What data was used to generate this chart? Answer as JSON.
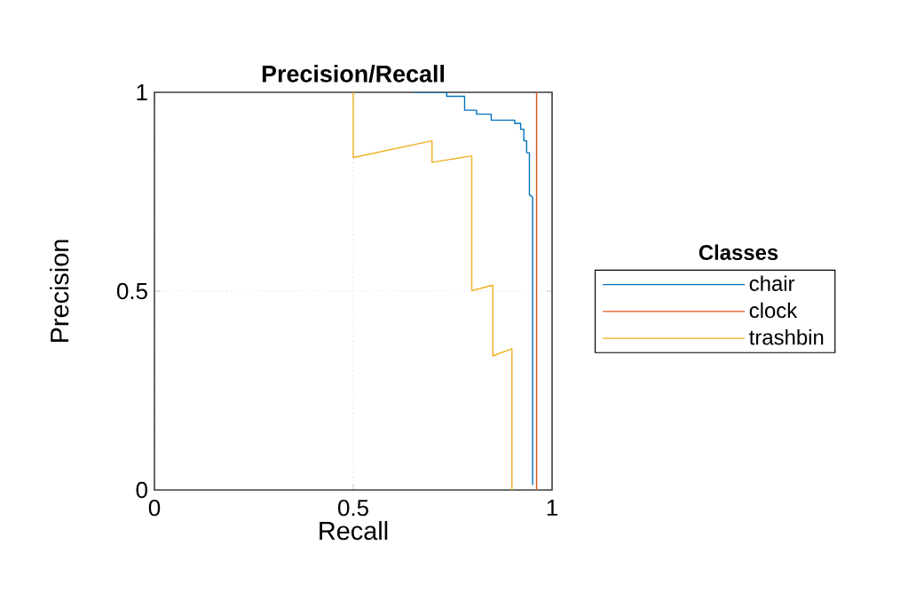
{
  "chart_data": {
    "type": "line",
    "title": "Precision/Recall",
    "xlabel": "Recall",
    "ylabel": "Precision",
    "legend_title": "Classes",
    "xlim": [
      0,
      1
    ],
    "ylim": [
      0,
      1
    ],
    "xticks": [
      0,
      0.5,
      1
    ],
    "yticks": [
      0,
      0.5,
      1
    ],
    "grid": true,
    "legend": "right",
    "series": [
      {
        "name": "chair",
        "color": "#0072bd",
        "x": [
          0.653,
          0.735,
          0.735,
          0.78,
          0.78,
          0.81,
          0.81,
          0.847,
          0.847,
          0.906,
          0.906,
          0.921,
          0.921,
          0.929,
          0.929,
          0.936,
          0.936,
          0.943,
          0.943,
          0.951,
          0.951
        ],
        "values": [
          1,
          1,
          0.99,
          0.99,
          0.955,
          0.955,
          0.945,
          0.945,
          0.93,
          0.93,
          0.922,
          0.922,
          0.907,
          0.907,
          0.878,
          0.878,
          0.848,
          0.848,
          0.743,
          0.736,
          0.012
        ]
      },
      {
        "name": "clock",
        "color": "#d95319",
        "x": [
          0.961,
          0.961
        ],
        "values": [
          1,
          0
        ]
      },
      {
        "name": "trashbin",
        "color": "#edb120",
        "x": [
          0.5,
          0.5,
          0.698,
          0.698,
          0.798,
          0.798,
          0.851,
          0.851,
          0.899,
          0.899
        ],
        "values": [
          1,
          0.836,
          0.878,
          0.824,
          0.84,
          0.501,
          0.515,
          0.337,
          0.355,
          0
        ]
      }
    ]
  }
}
